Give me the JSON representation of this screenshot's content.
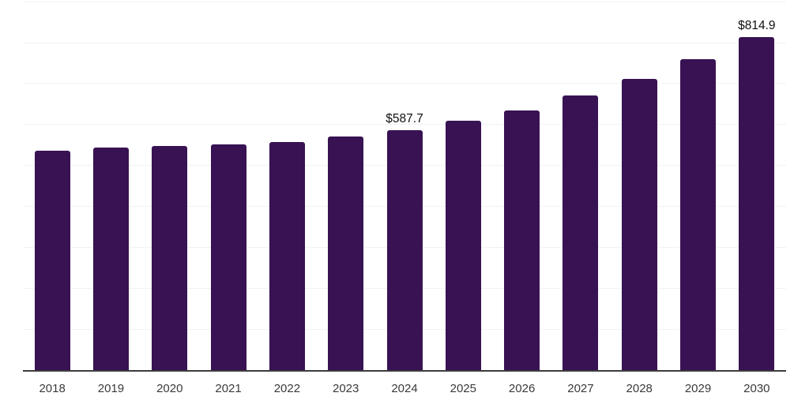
{
  "chart_data": {
    "type": "bar",
    "title": "",
    "xlabel": "",
    "ylabel": "",
    "categories": [
      "2018",
      "2019",
      "2020",
      "2021",
      "2022",
      "2023",
      "2024",
      "2025",
      "2026",
      "2027",
      "2028",
      "2029",
      "2030"
    ],
    "values": [
      537.0,
      545.0,
      548.5,
      553.0,
      558.0,
      571.5,
      587.7,
      609.5,
      636.0,
      671.5,
      712.0,
      760.0,
      814.9
    ],
    "data_labels": {
      "2024": "$587.7",
      "2030": "$814.9"
    },
    "ylim": [
      0,
      900
    ],
    "gridline_step": 100,
    "grid": true,
    "legend": false,
    "currency_prefix": "$",
    "bar_color": "#381253",
    "axis_line_color": "#3c3c3c",
    "gridline_color": "#f2f2f2",
    "tick_label_color": "#3a3a3a",
    "value_label_color": "#0f0f0f",
    "background_color": "#ffffff"
  }
}
